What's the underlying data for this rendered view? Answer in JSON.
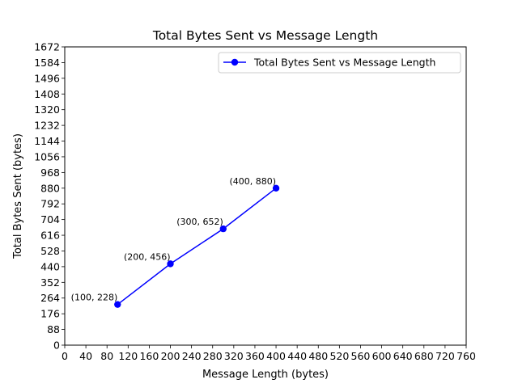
{
  "chart_data": {
    "type": "line",
    "title": "Total Bytes Sent vs Message Length",
    "xlabel": "Message Length (bytes)",
    "ylabel": "Total Bytes Sent (bytes)",
    "xlim": [
      0,
      760
    ],
    "ylim": [
      0,
      1672
    ],
    "xticks": [
      0,
      40,
      80,
      120,
      160,
      200,
      240,
      280,
      320,
      360,
      400,
      440,
      480,
      520,
      560,
      600,
      640,
      680,
      720,
      760
    ],
    "yticks": [
      0,
      88,
      176,
      264,
      352,
      440,
      528,
      616,
      704,
      792,
      880,
      968,
      1056,
      1144,
      1232,
      1320,
      1408,
      1496,
      1584,
      1672
    ],
    "xtick_labels": [
      "0",
      "40",
      "80",
      "120",
      "160",
      "200",
      "240",
      "280",
      "320",
      "360",
      "400",
      "440",
      "480",
      "520",
      "560",
      "600",
      "640",
      "680",
      "720",
      "760"
    ],
    "ytick_labels": [
      "0",
      "88",
      "176",
      "264",
      "352",
      "440",
      "528",
      "616",
      "704",
      "792",
      "880",
      "968",
      "1056",
      "1144",
      "1232",
      "1320",
      "1408",
      "1496",
      "1584",
      "1672"
    ],
    "grid": false,
    "legend_position": "top-right",
    "series": [
      {
        "name": "Total Bytes Sent vs Message Length",
        "color": "#0000ff",
        "marker": "circle",
        "x": [
          100,
          200,
          300,
          400
        ],
        "y": [
          228,
          456,
          652,
          880
        ]
      }
    ],
    "annotations": [
      "(100, 228)",
      "(200, 456)",
      "(300, 652)",
      "(400, 880)"
    ]
  }
}
